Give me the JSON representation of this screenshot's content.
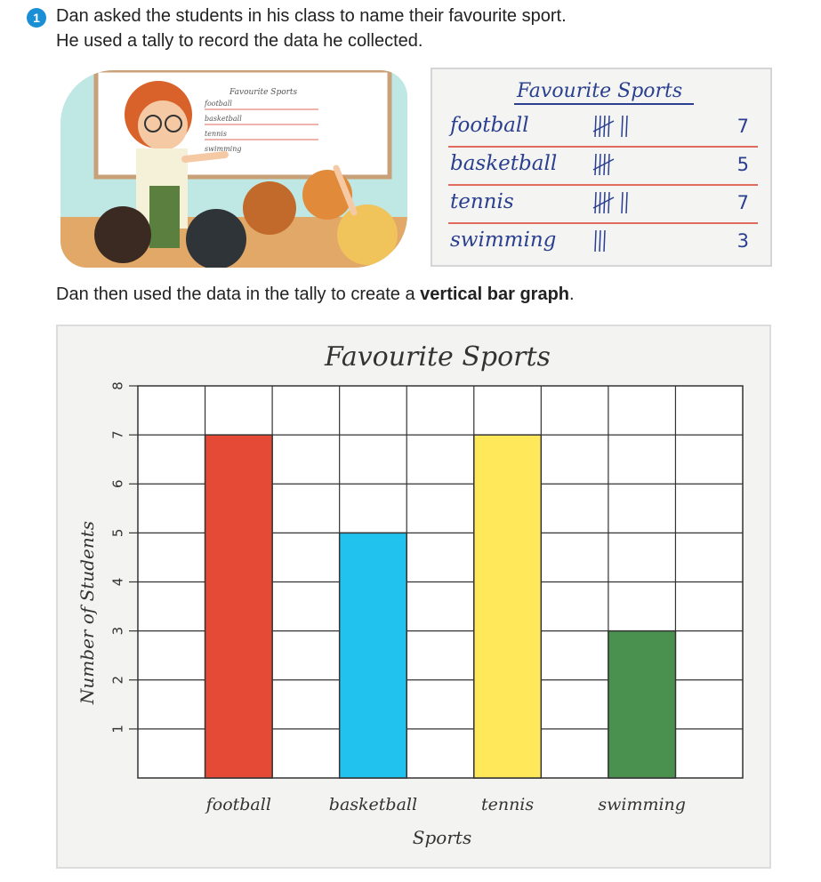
{
  "question": {
    "number": "1",
    "line1": "Dan asked the students in his class to name their favourite sport.",
    "line2": "He used a tally to record the data he collected."
  },
  "illustration": {
    "board_title": "Favourite Sports",
    "board_items": [
      "football",
      "basketball",
      "tennis",
      "swimming"
    ]
  },
  "tally": {
    "title": "Favourite Sports",
    "rows": [
      {
        "sport": "football",
        "tally": 7,
        "count": "7"
      },
      {
        "sport": "basketball",
        "tally": 5,
        "count": "5"
      },
      {
        "sport": "tennis",
        "tally": 7,
        "count": "7"
      },
      {
        "sport": "swimming",
        "tally": 3,
        "count": "3"
      }
    ],
    "colors": {
      "ink": "#2a3f8f",
      "rule": "#e06a5e"
    }
  },
  "caption": {
    "prefix": "Dan then used the data in the tally to create a ",
    "bold": "vertical bar graph",
    "suffix": "."
  },
  "chart_data": {
    "type": "bar",
    "title": "Favourite Sports",
    "xlabel": "Sports",
    "ylabel": "Number of Students",
    "categories": [
      "football",
      "basketball",
      "tennis",
      "swimming"
    ],
    "values": [
      7,
      5,
      7,
      3
    ],
    "colors": [
      "#e44a35",
      "#22c2ee",
      "#ffe85a",
      "#4a9150"
    ],
    "ylim": [
      0,
      8
    ],
    "yticks": [
      "1",
      "2",
      "3",
      "4",
      "5",
      "6",
      "7",
      "8"
    ],
    "grid": true,
    "legend": "none"
  }
}
